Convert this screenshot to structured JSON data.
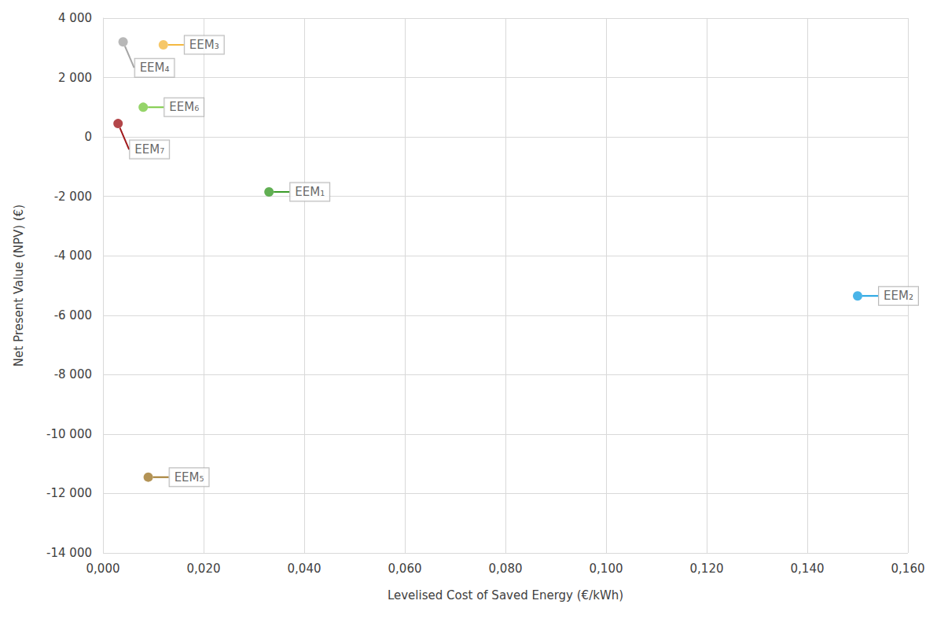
{
  "chart_data": {
    "type": "scatter",
    "x_label": "Levelised Cost of Saved Energy (€/kWh)",
    "y_label": "Net Present Value (NPV) (€)",
    "labels": [
      "EEM₁",
      "EEM₂",
      "EEM₃",
      "EEM₄",
      "EEM₅",
      "EEM₆",
      "EEM₇"
    ],
    "x": [
      0.033,
      0.15,
      0.012,
      0.004,
      0.009,
      0.008,
      0.003
    ],
    "values": [
      -1850,
      -5350,
      3100,
      3200,
      -11450,
      1000,
      450
    ],
    "colors": [
      "#3a9b28",
      "#1ba1e2",
      "#f4b942",
      "#a6a6a6",
      "#a0782a",
      "#7ac943",
      "#a0181b"
    ],
    "xlim": [
      0,
      0.16
    ],
    "xticks": [
      {
        "value": 0,
        "label": "0,000"
      },
      {
        "value": 0.02,
        "label": "0,020"
      },
      {
        "value": 0.04,
        "label": "0,040"
      },
      {
        "value": 0.06,
        "label": "0,060"
      },
      {
        "value": 0.08,
        "label": "0,080"
      },
      {
        "value": 0.1,
        "label": "0,100"
      },
      {
        "value": 0.12,
        "label": "0,120"
      },
      {
        "value": 0.14,
        "label": "0,140"
      },
      {
        "value": 0.16,
        "label": "0,160"
      }
    ],
    "ylim": [
      -14000,
      4000
    ],
    "yticks": [
      {
        "value": -14000,
        "label": "-14 000"
      },
      {
        "value": -12000,
        "label": "-12 000"
      },
      {
        "value": -10000,
        "label": "-10 000"
      },
      {
        "value": -8000,
        "label": "-8 000"
      },
      {
        "value": -6000,
        "label": "-6 000"
      },
      {
        "value": -4000,
        "label": "-4 000"
      },
      {
        "value": -2000,
        "label": "-2 000"
      },
      0,
      {
        "value": 2000,
        "label": "2 000"
      },
      {
        "value": 4000,
        "label": "4 000"
      }
    ],
    "grid": true
  }
}
